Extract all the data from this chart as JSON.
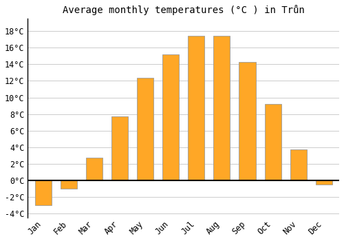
{
  "title": "Average monthly temperatures (°C ) in Trůn",
  "months": [
    "Jan",
    "Feb",
    "Mar",
    "Apr",
    "May",
    "Jun",
    "Jul",
    "Aug",
    "Sep",
    "Oct",
    "Nov",
    "Dec"
  ],
  "values": [
    -3.0,
    -1.0,
    2.7,
    7.7,
    12.4,
    15.2,
    17.4,
    17.4,
    14.3,
    9.2,
    3.7,
    -0.5
  ],
  "bar_color": "#FFA726",
  "bar_edge_color": "#999999",
  "background_color": "#FFFFFF",
  "grid_color": "#CCCCCC",
  "ylim": [
    -4.5,
    19.5
  ],
  "yticks": [
    -4,
    -2,
    0,
    2,
    4,
    6,
    8,
    10,
    12,
    14,
    16,
    18
  ],
  "zero_line_color": "#000000",
  "title_fontsize": 10,
  "tick_fontsize": 8.5,
  "bar_width": 0.65
}
